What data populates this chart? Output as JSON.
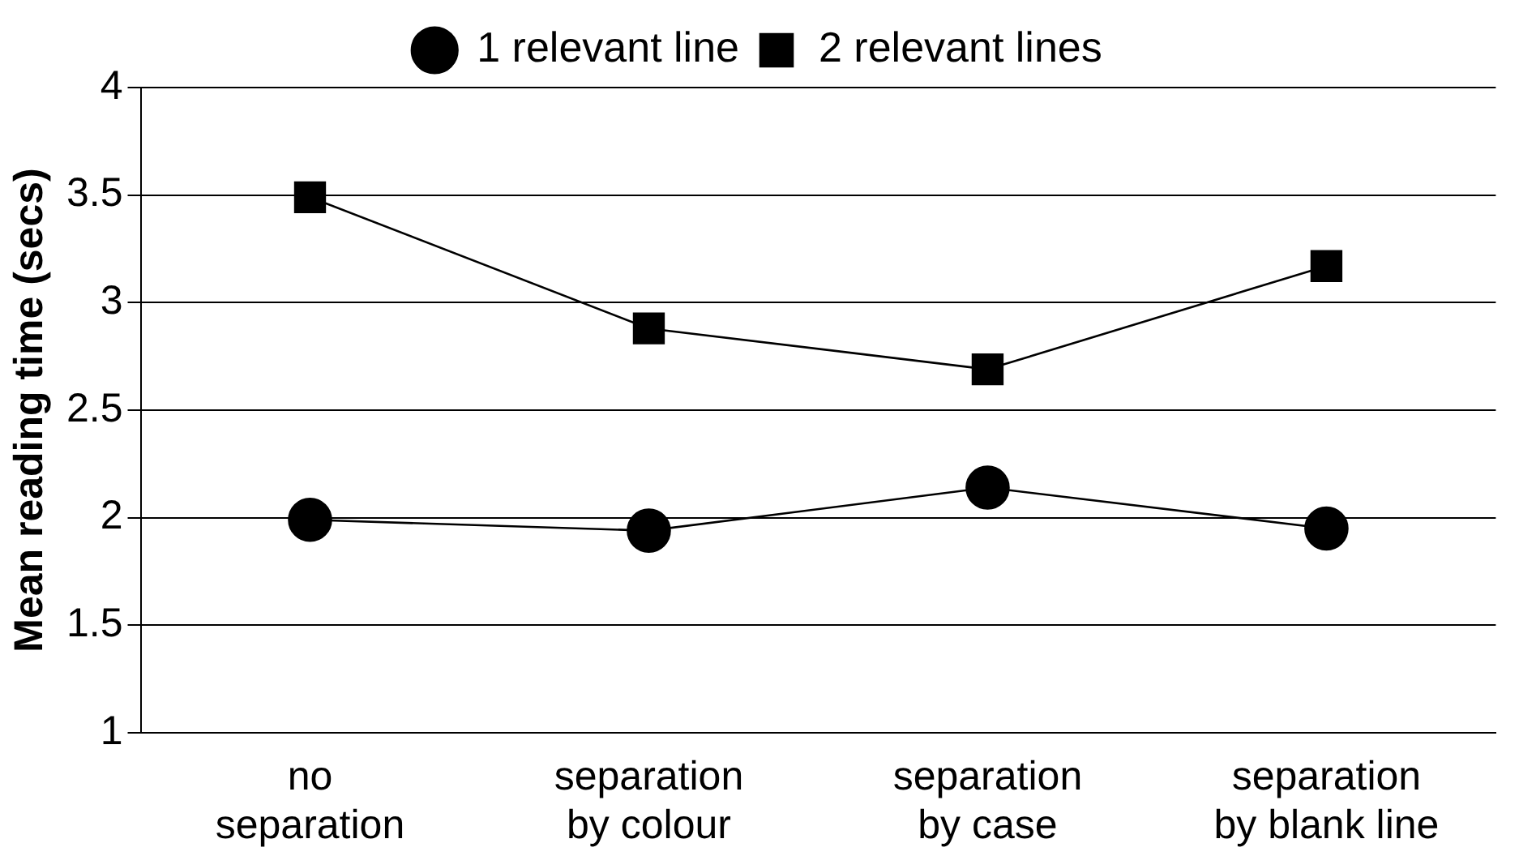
{
  "chart_data": {
    "type": "line",
    "ylabel": "Mean reading time (secs)",
    "categories": [
      "no separation",
      "separation by colour",
      "separation by case",
      "separation by blank line"
    ],
    "series": [
      {
        "name": "1 relevant line",
        "color": "#000000",
        "marker": "circle",
        "values": [
          1.99,
          1.94,
          2.14,
          1.95
        ]
      },
      {
        "name": "2 relevant lines",
        "color": "#000000",
        "marker": "square",
        "values": [
          3.49,
          2.88,
          2.69,
          3.17
        ]
      }
    ],
    "ylim": [
      1,
      4
    ],
    "yticks": [
      1,
      1.5,
      2,
      2.5,
      3,
      3.5,
      4
    ],
    "grid": "y",
    "legend": "top",
    "line_style": "solid"
  }
}
